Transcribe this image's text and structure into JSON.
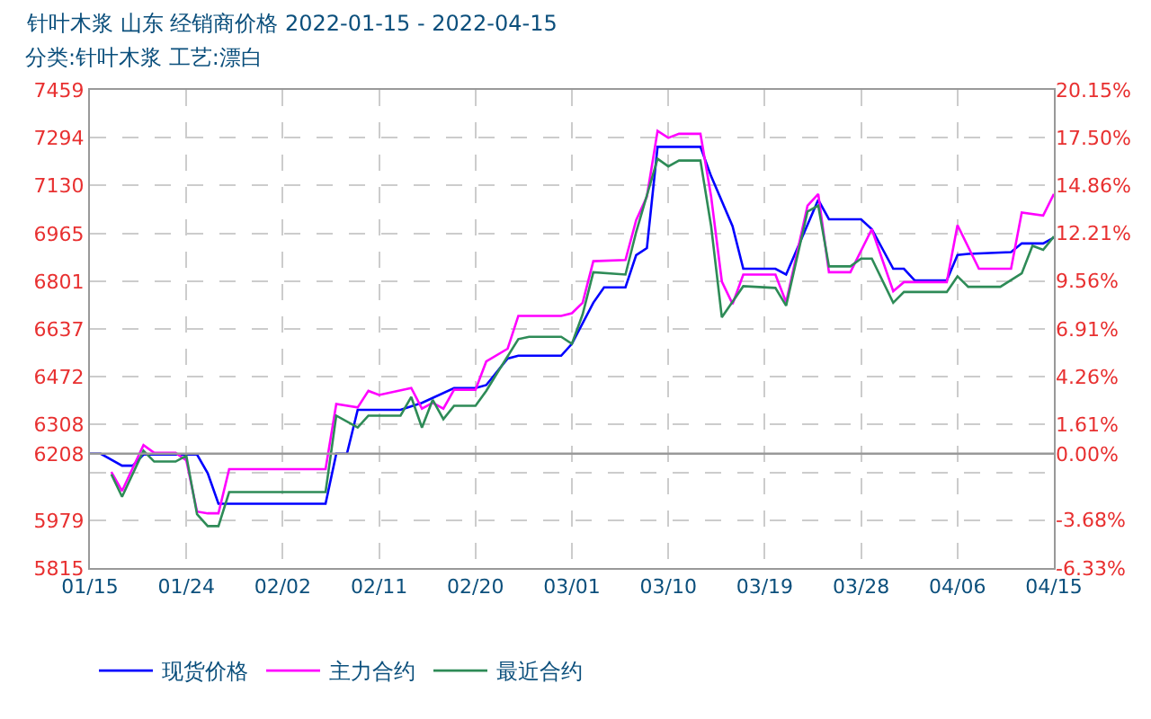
{
  "chart_data": {
    "type": "line",
    "title": "针叶木浆 山东 经销商价格 2022-01-15 - 2022-04-15",
    "subtitle": "分类:针叶木浆 工艺:漂白",
    "series": [
      {
        "name": "现货价格",
        "color": "#0000ff",
        "x": [
          "2022-01-15",
          "2022-01-16",
          "2022-01-18",
          "2022-01-19",
          "2022-01-20",
          "2022-01-25",
          "2022-01-26",
          "2022-01-27",
          "2022-02-06",
          "2022-02-07",
          "2022-02-08",
          "2022-02-09",
          "2022-02-13",
          "2022-02-15",
          "2022-02-18",
          "2022-02-20",
          "2022-02-21",
          "2022-02-23",
          "2022-02-24",
          "2022-02-28",
          "2022-03-01",
          "2022-03-03",
          "2022-03-04",
          "2022-03-06",
          "2022-03-07",
          "2022-03-08",
          "2022-03-09",
          "2022-03-13",
          "2022-03-14",
          "2022-03-16",
          "2022-03-17",
          "2022-03-20",
          "2022-03-21",
          "2022-03-24",
          "2022-03-25",
          "2022-03-28",
          "2022-03-29",
          "2022-03-31",
          "2022-04-01",
          "2022-04-02",
          "2022-04-05",
          "2022-04-06",
          "2022-04-07",
          "2022-04-11",
          "2022-04-12",
          "2022-04-14",
          "2022-04-15"
        ],
        "values": [
          6208,
          6208,
          6167,
          6167,
          6205,
          6205,
          6141,
          6036,
          6036,
          6208,
          6208,
          6359,
          6359,
          6383,
          6434,
          6434,
          6444,
          6535,
          6545,
          6545,
          6586,
          6727,
          6780,
          6780,
          6891,
          6915,
          7263,
          7263,
          7162,
          6990,
          6844,
          6844,
          6824,
          7081,
          7014,
          7014,
          6980,
          6844,
          6844,
          6804,
          6804,
          6891,
          6895,
          6901,
          6931,
          6931,
          6951
        ]
      },
      {
        "name": "主力合约",
        "color": "#ff00ff",
        "x": [
          "2022-01-17",
          "2022-01-18",
          "2022-01-20",
          "2022-01-21",
          "2022-01-23",
          "2022-01-24",
          "2022-01-25",
          "2022-01-26",
          "2022-01-27",
          "2022-01-28",
          "2022-02-06",
          "2022-02-07",
          "2022-02-09",
          "2022-02-10",
          "2022-02-11",
          "2022-02-14",
          "2022-02-15",
          "2022-02-16",
          "2022-02-17",
          "2022-02-18",
          "2022-02-20",
          "2022-02-21",
          "2022-02-23",
          "2022-02-24",
          "2022-02-28",
          "2022-03-01",
          "2022-03-02",
          "2022-03-03",
          "2022-03-06",
          "2022-03-07",
          "2022-03-08",
          "2022-03-09",
          "2022-03-10",
          "2022-03-11",
          "2022-03-13",
          "2022-03-14",
          "2022-03-15",
          "2022-03-16",
          "2022-03-17",
          "2022-03-20",
          "2022-03-21",
          "2022-03-23",
          "2022-03-24",
          "2022-03-25",
          "2022-03-27",
          "2022-03-29",
          "2022-03-31",
          "2022-04-01",
          "2022-04-05",
          "2022-04-06",
          "2022-04-08",
          "2022-04-11",
          "2022-04-12",
          "2022-04-14",
          "2022-04-15"
        ],
        "values": [
          6145,
          6080,
          6238,
          6211,
          6211,
          6185,
          6009,
          6003,
          6003,
          6155,
          6155,
          6379,
          6367,
          6424,
          6410,
          6434,
          6363,
          6383,
          6363,
          6428,
          6428,
          6525,
          6569,
          6682,
          6682,
          6691,
          6727,
          6870,
          6874,
          7011,
          7092,
          7318,
          7294,
          7308,
          7308,
          7092,
          6800,
          6723,
          6824,
          6824,
          6729,
          7061,
          7101,
          6832,
          6832,
          6980,
          6767,
          6798,
          6798,
          6994,
          6844,
          6844,
          7037,
          7027,
          7101
        ]
      },
      {
        "name": "最近合约",
        "color": "#2e8b57",
        "x": [
          "2022-01-17",
          "2022-01-18",
          "2022-01-20",
          "2022-01-21",
          "2022-01-23",
          "2022-01-24",
          "2022-01-25",
          "2022-01-26",
          "2022-01-27",
          "2022-01-28",
          "2022-02-06",
          "2022-02-07",
          "2022-02-09",
          "2022-02-10",
          "2022-02-13",
          "2022-02-14",
          "2022-02-15",
          "2022-02-16",
          "2022-02-17",
          "2022-02-18",
          "2022-02-20",
          "2022-02-21",
          "2022-02-22",
          "2022-02-24",
          "2022-02-25",
          "2022-02-28",
          "2022-03-01",
          "2022-03-02",
          "2022-03-03",
          "2022-03-06",
          "2022-03-07",
          "2022-03-09",
          "2022-03-10",
          "2022-03-11",
          "2022-03-13",
          "2022-03-14",
          "2022-03-15",
          "2022-03-17",
          "2022-03-20",
          "2022-03-21",
          "2022-03-23",
          "2022-03-24",
          "2022-03-25",
          "2022-03-27",
          "2022-03-28",
          "2022-03-29",
          "2022-03-31",
          "2022-04-01",
          "2022-04-05",
          "2022-04-06",
          "2022-04-07",
          "2022-04-10",
          "2022-04-12",
          "2022-04-13",
          "2022-04-14",
          "2022-04-15"
        ],
        "values": [
          6137,
          6060,
          6218,
          6181,
          6181,
          6201,
          6000,
          5959,
          5959,
          6076,
          6076,
          6339,
          6298,
          6339,
          6339,
          6403,
          6298,
          6393,
          6327,
          6373,
          6373,
          6424,
          6484,
          6602,
          6610,
          6610,
          6586,
          6687,
          6832,
          6824,
          6970,
          7222,
          7196,
          7216,
          7216,
          6990,
          6677,
          6784,
          6778,
          6717,
          7041,
          7061,
          6852,
          6852,
          6879,
          6879,
          6727,
          6764,
          6764,
          6818,
          6782,
          6782,
          6828,
          6923,
          6909,
          6955
        ]
      }
    ],
    "xlim": [
      "2022-01-15",
      "2022-04-15"
    ],
    "xticks": [
      {
        "value": "2022-01-15",
        "label": "01/15"
      },
      {
        "value": "2022-01-24",
        "label": "01/24"
      },
      {
        "value": "2022-02-02",
        "label": "02/02"
      },
      {
        "value": "2022-02-11",
        "label": "02/11"
      },
      {
        "value": "2022-02-20",
        "label": "02/20"
      },
      {
        "value": "2022-03-01",
        "label": "03/01"
      },
      {
        "value": "2022-03-10",
        "label": "03/10"
      },
      {
        "value": "2022-03-19",
        "label": "03/19"
      },
      {
        "value": "2022-03-28",
        "label": "03/28"
      },
      {
        "value": "2022-04-06",
        "label": "04/06"
      },
      {
        "value": "2022-04-15",
        "label": "04/15"
      }
    ],
    "ylim": [
      5815,
      7459
    ],
    "yticks": [
      5815,
      5979,
      {
        "value": 6143,
        "label": null
      },
      6208,
      6308,
      6472,
      6637,
      6801,
      6965,
      7130,
      7294,
      7459
    ],
    "y2lim": [
      -6.33,
      20.15
    ],
    "y2ticks": [
      {
        "value": -6.33,
        "label": "-6.33%"
      },
      {
        "value": -3.68,
        "label": "-3.68%"
      },
      {
        "value": 0,
        "label": "0.00%"
      },
      {
        "value": 1.61,
        "label": "1.61%"
      },
      {
        "value": 4.26,
        "label": "4.26%"
      },
      {
        "value": 6.91,
        "label": "6.91%"
      },
      {
        "value": 9.56,
        "label": "9.56%"
      },
      {
        "value": 12.21,
        "label": "12.21%"
      },
      {
        "value": 14.86,
        "label": "14.86%"
      },
      {
        "value": 17.5,
        "label": "17.50%"
      },
      {
        "value": 20.15,
        "label": "20.15%"
      }
    ],
    "ref_lines": [
      {
        "axis": "y",
        "value": 6208,
        "color": "#999999",
        "line_style": "solid"
      }
    ],
    "grid": true,
    "legend": "bottom left",
    "marker": "none",
    "line_style": "solid"
  }
}
